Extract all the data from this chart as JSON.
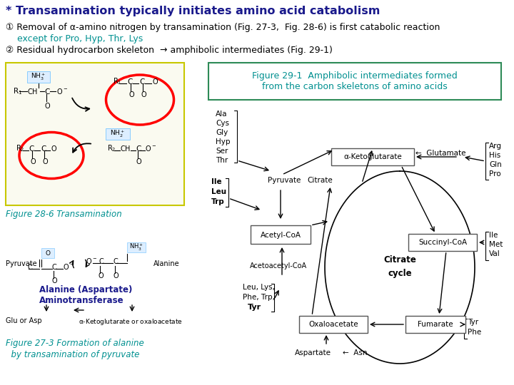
{
  "bg_color": "#ffffff",
  "title": "* Transamination typically initiates amino acid catabolism",
  "title_color": "#1a1a8c",
  "title_fontsize": 11.5,
  "line1": "① Removal of α-amino nitrogen by transamination (Fig. 27-3,  Fig. 28-6) is first catabolic reaction",
  "line1_color": "#000000",
  "line1_fontsize": 9.0,
  "line2": "    except for Pro, Hyp, Thr, Lys",
  "line2_color": "#009090",
  "line2_fontsize": 9.0,
  "line3": "② Residual hydrocarbon skeleton  → amphibolic intermediates (Fig. 29-1)",
  "line3_color": "#000000",
  "line3_fontsize": 9.0,
  "fig286_label": "Figure 28-6 Transamination",
  "fig286_label_color": "#009090",
  "fig286_label_fontsize": 8.5,
  "fig291_title1": "Figure 29-1  Amphibolic intermediates formed",
  "fig291_title2": "from the carbon skeletons of amino acids",
  "fig291_title_color": "#009090",
  "fig291_title_fontsize": 9.0,
  "alanine_label": "Alanine (Aspartate)\nAminotransferase",
  "alanine_label_color": "#1a1a8c",
  "alanine_label_fontsize": 8.5,
  "fig273_label1": "Figure 27-3 Formation of alanine",
  "fig273_label2": "  by transamination of pyruvate",
  "fig273_label_color": "#009090",
  "fig273_label_fontsize": 8.5
}
